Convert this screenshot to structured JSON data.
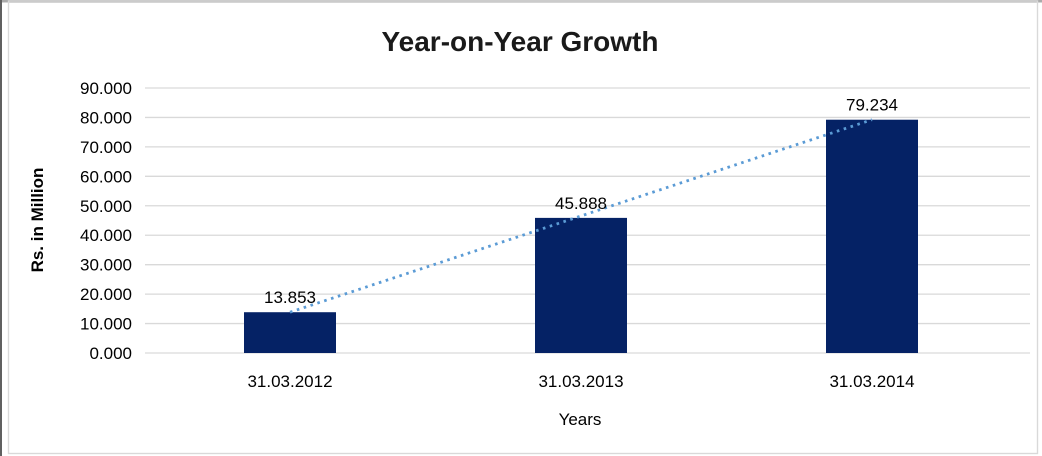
{
  "chart_data": {
    "type": "bar",
    "title": "Year-on-Year Growth",
    "categories": [
      "31.03.2012",
      "31.03.2013",
      "31.03.2014"
    ],
    "values": [
      13.853,
      45.888,
      79.234
    ],
    "value_labels": [
      "13.853",
      "45.888",
      "79.234"
    ],
    "xlabel": "Years",
    "ylabel": "Rs. in Million",
    "ylim": [
      0,
      90
    ],
    "ytick_step": 10,
    "ytick_labels": [
      "0.000",
      "10.000",
      "20.000",
      "30.000",
      "40.000",
      "50.000",
      "60.000",
      "70.000",
      "80.000",
      "90.000"
    ],
    "grid": true,
    "legend_position": "none",
    "trendline": {
      "type": "linear",
      "style": "dotted"
    },
    "colors": {
      "bar": "#052265",
      "trendline": "#5B9BD5",
      "gridline": "#D9D9D9",
      "axis_text": "#000000",
      "title_text": "#1A1A1A"
    }
  }
}
